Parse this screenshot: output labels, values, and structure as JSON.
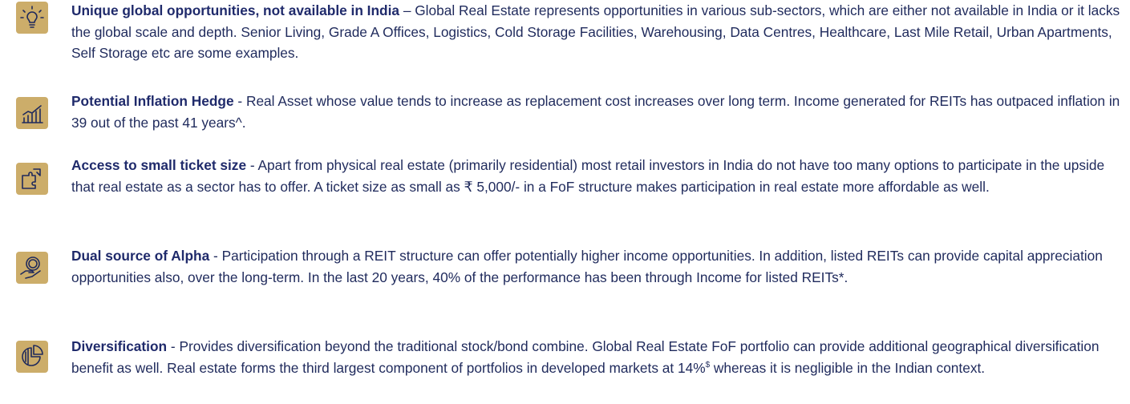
{
  "items": [
    {
      "title": "Unique global opportunities, not available in India",
      "text": "– Global Real Estate represents opportunities in various sub-sectors, which are either not available in India or it lacks the global scale and depth. Senior Living, Grade A Offices, Logistics, Cold Storage Facilities, Warehousing, Data Centres, Healthcare, Last Mile Retail, Urban Apartments, Self Storage etc are some examples."
    },
    {
      "title": "Potential Inflation Hedge",
      "text": "- Real Asset whose value tends to increase as replacement cost increases over long term. Income generated for REITs has outpaced inflation in 39 out of the past 41 years^."
    },
    {
      "title": "Access to small ticket size",
      "text": "- Apart from physical real estate (primarily residential) most retail investors in India do not have too many options to participate in the upside that real estate as a sector has to offer. A ticket size as small as ₹ 5,000/- in a FoF structure makes participation in real estate more affordable as well."
    },
    {
      "title": "Dual source of Alpha",
      "text": "- Participation through a REIT structure can offer potentially higher income opportunities. In addition, listed REITs can provide capital appreciation opportunities also, over the long-term. In the last 20 years, 40% of the performance has been through Income for listed REITs*."
    },
    {
      "title": "Diversification",
      "text": "- Provides diversification beyond the traditional stock/bond combine. Global Real Estate FoF portfolio can provide additional geographical diversification benefit as well. Real estate forms the third largest component of portfolios in developed markets at 14%",
      "superscript": "$",
      "text_after": " whereas it is negligible in the Indian context."
    }
  ]
}
